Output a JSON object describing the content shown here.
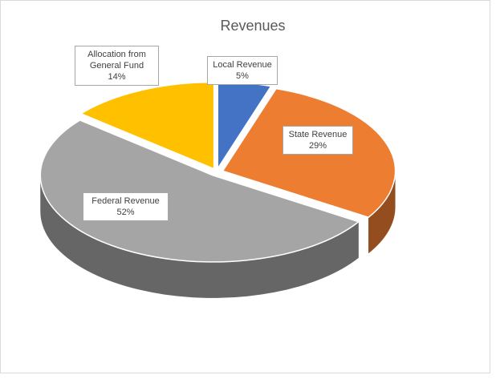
{
  "chart_data": {
    "type": "pie",
    "title": "Revenues",
    "categories": [
      "Local Revenue",
      "State Revenue",
      "Federal Revenue",
      "Allocation from General Fund"
    ],
    "values": [
      5,
      29,
      52,
      14
    ],
    "value_labels": [
      "5%",
      "29%",
      "52%",
      "14%"
    ],
    "colors": [
      "#4472c4",
      "#ed7d31",
      "#a5a5a5",
      "#ffc000"
    ]
  }
}
